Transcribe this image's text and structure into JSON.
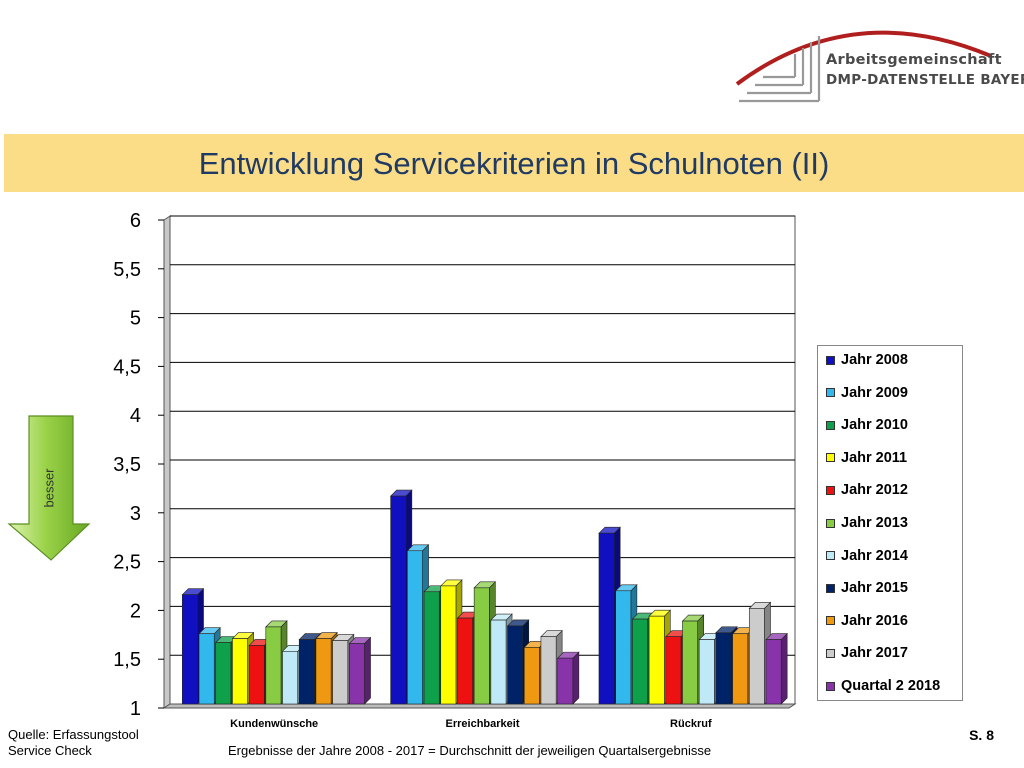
{
  "header": {
    "logo_line1": "Arbeitsgemeinschaft",
    "logo_line2": "DMP-DATENSTELLE BAYERN",
    "title": "Entwicklung Servicekriterien in Schulnoten (II)"
  },
  "arrow": {
    "label": "besser"
  },
  "footer": {
    "source_line1": "Quelle: Erfassungstool",
    "source_line2": "Service Check",
    "note": "Ergebnisse der Jahre 2008 - 2017  = Durchschnitt der jeweiligen Quartalsergebnisse",
    "page": "S. 8"
  },
  "colors": {
    "title_band": "#fbdc87",
    "title_text": "#1f3a63",
    "arrow": "#9bd34a"
  },
  "chart_data": {
    "type": "bar",
    "title": "",
    "xlabel": "",
    "ylabel": "",
    "ylim": [
      1,
      6
    ],
    "yticks": [
      1,
      1.5,
      2,
      2.5,
      3,
      3.5,
      4,
      4.5,
      5,
      5.5,
      6
    ],
    "ytick_labels": [
      "1",
      "1,5",
      "2",
      "2,5",
      "3",
      "3,5",
      "4",
      "4,5",
      "5",
      "5,5",
      "6"
    ],
    "grid": true,
    "legend_position": "right",
    "categories": [
      "Kundenwünsche",
      "Erreichbarkeit",
      "Rückruf"
    ],
    "series": [
      {
        "name": "Jahr 2008",
        "color": "#1010c0",
        "values": [
          2.12,
          3.13,
          2.75
        ]
      },
      {
        "name": "Jahr 2009",
        "color": "#33b8ee",
        "values": [
          1.72,
          2.57,
          2.16
        ]
      },
      {
        "name": "Jahr 2010",
        "color": "#0ea04a",
        "values": [
          1.63,
          2.15,
          1.87
        ]
      },
      {
        "name": "Jahr 2011",
        "color": "#ffff00",
        "values": [
          1.67,
          2.21,
          1.9
        ]
      },
      {
        "name": "Jahr 2012",
        "color": "#ee1111",
        "values": [
          1.6,
          1.88,
          1.69
        ]
      },
      {
        "name": "Jahr 2013",
        "color": "#88cc44",
        "values": [
          1.79,
          2.19,
          1.85
        ]
      },
      {
        "name": "Jahr 2014",
        "color": "#bfe9f7",
        "values": [
          1.54,
          1.86,
          1.66
        ]
      },
      {
        "name": "Jahr 2015",
        "color": "#002266",
        "values": [
          1.66,
          1.8,
          1.73
        ]
      },
      {
        "name": "Jahr 2016",
        "color": "#ee9911",
        "values": [
          1.67,
          1.58,
          1.72
        ]
      },
      {
        "name": "Jahr 2017",
        "color": "#cccccc",
        "values": [
          1.65,
          1.69,
          1.98
        ]
      },
      {
        "name": "Quartal 2 2018",
        "color": "#8833aa",
        "values": [
          1.62,
          1.47,
          1.66
        ]
      }
    ]
  }
}
